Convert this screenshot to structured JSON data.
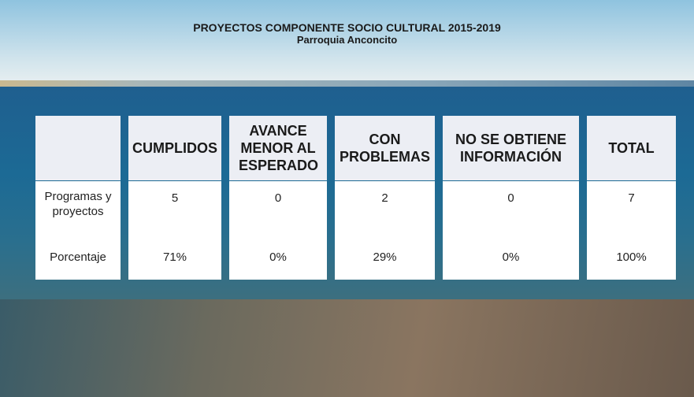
{
  "header": {
    "title": "PROYECTOS COMPONENTE SOCIO CULTURAL 2015-2019",
    "subtitle": "Parroquia Anconcito"
  },
  "table": {
    "headers": [
      "CUMPLIDOS",
      "AVANCE MENOR AL ESPERADO",
      "CON PROBLEMAS",
      "NO SE OBTIENE INFORMACIÓN",
      "TOTAL"
    ],
    "rows": [
      [
        "Programas y proyectos",
        "5",
        "0",
        "2",
        "0",
        "7"
      ],
      [
        "Porcentaje",
        "71%",
        "0%",
        "29%",
        "0%",
        "100%"
      ]
    ]
  }
}
